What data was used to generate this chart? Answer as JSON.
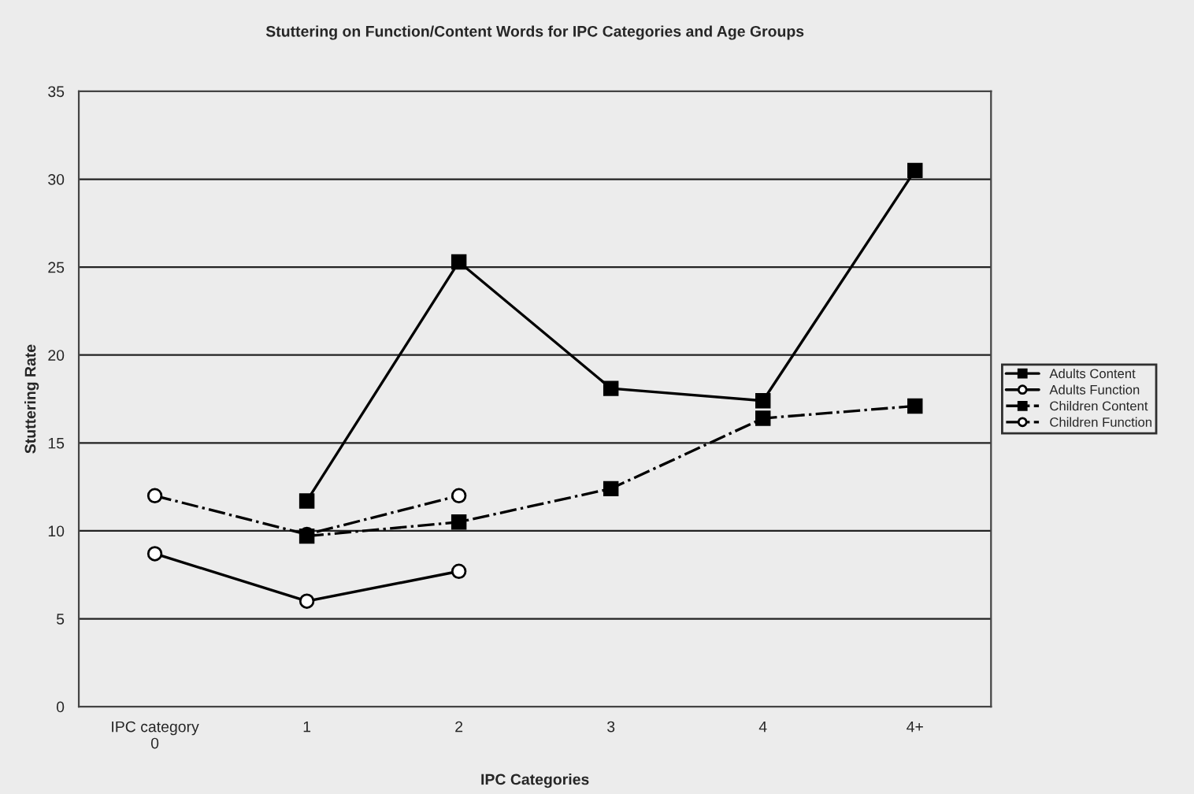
{
  "chart_data": {
    "type": "line",
    "title": "Stuttering on Function/Content Words for IPC Categories and Age Groups",
    "xlabel": "IPC Categories",
    "ylabel": "Stuttering Rate",
    "categories": [
      "IPC category\n0",
      "1",
      "2",
      "3",
      "4",
      "4+"
    ],
    "series": [
      {
        "name": "Adults Content",
        "color": "#000000",
        "marker": "square",
        "line_style": "solid",
        "values": [
          null,
          11.7,
          25.3,
          18.1,
          17.4,
          30.5
        ]
      },
      {
        "name": "Adults Function",
        "color": "#000000",
        "marker": "circle",
        "line_style": "solid",
        "values": [
          8.7,
          6.0,
          7.7,
          null,
          null,
          null
        ]
      },
      {
        "name": "Children Content",
        "color": "#000000",
        "marker": "square",
        "line_style": "dashdot",
        "values": [
          null,
          9.7,
          10.5,
          12.4,
          16.4,
          17.1
        ]
      },
      {
        "name": "Children Function",
        "color": "#000000",
        "marker": "circle",
        "line_style": "dashdot",
        "values": [
          12.0,
          9.8,
          12.0,
          null,
          null,
          null
        ]
      }
    ],
    "ylim": [
      0,
      35
    ],
    "yticks": [
      0,
      5,
      10,
      15,
      20,
      25,
      30,
      35
    ],
    "grid": "y",
    "legend": "right"
  }
}
